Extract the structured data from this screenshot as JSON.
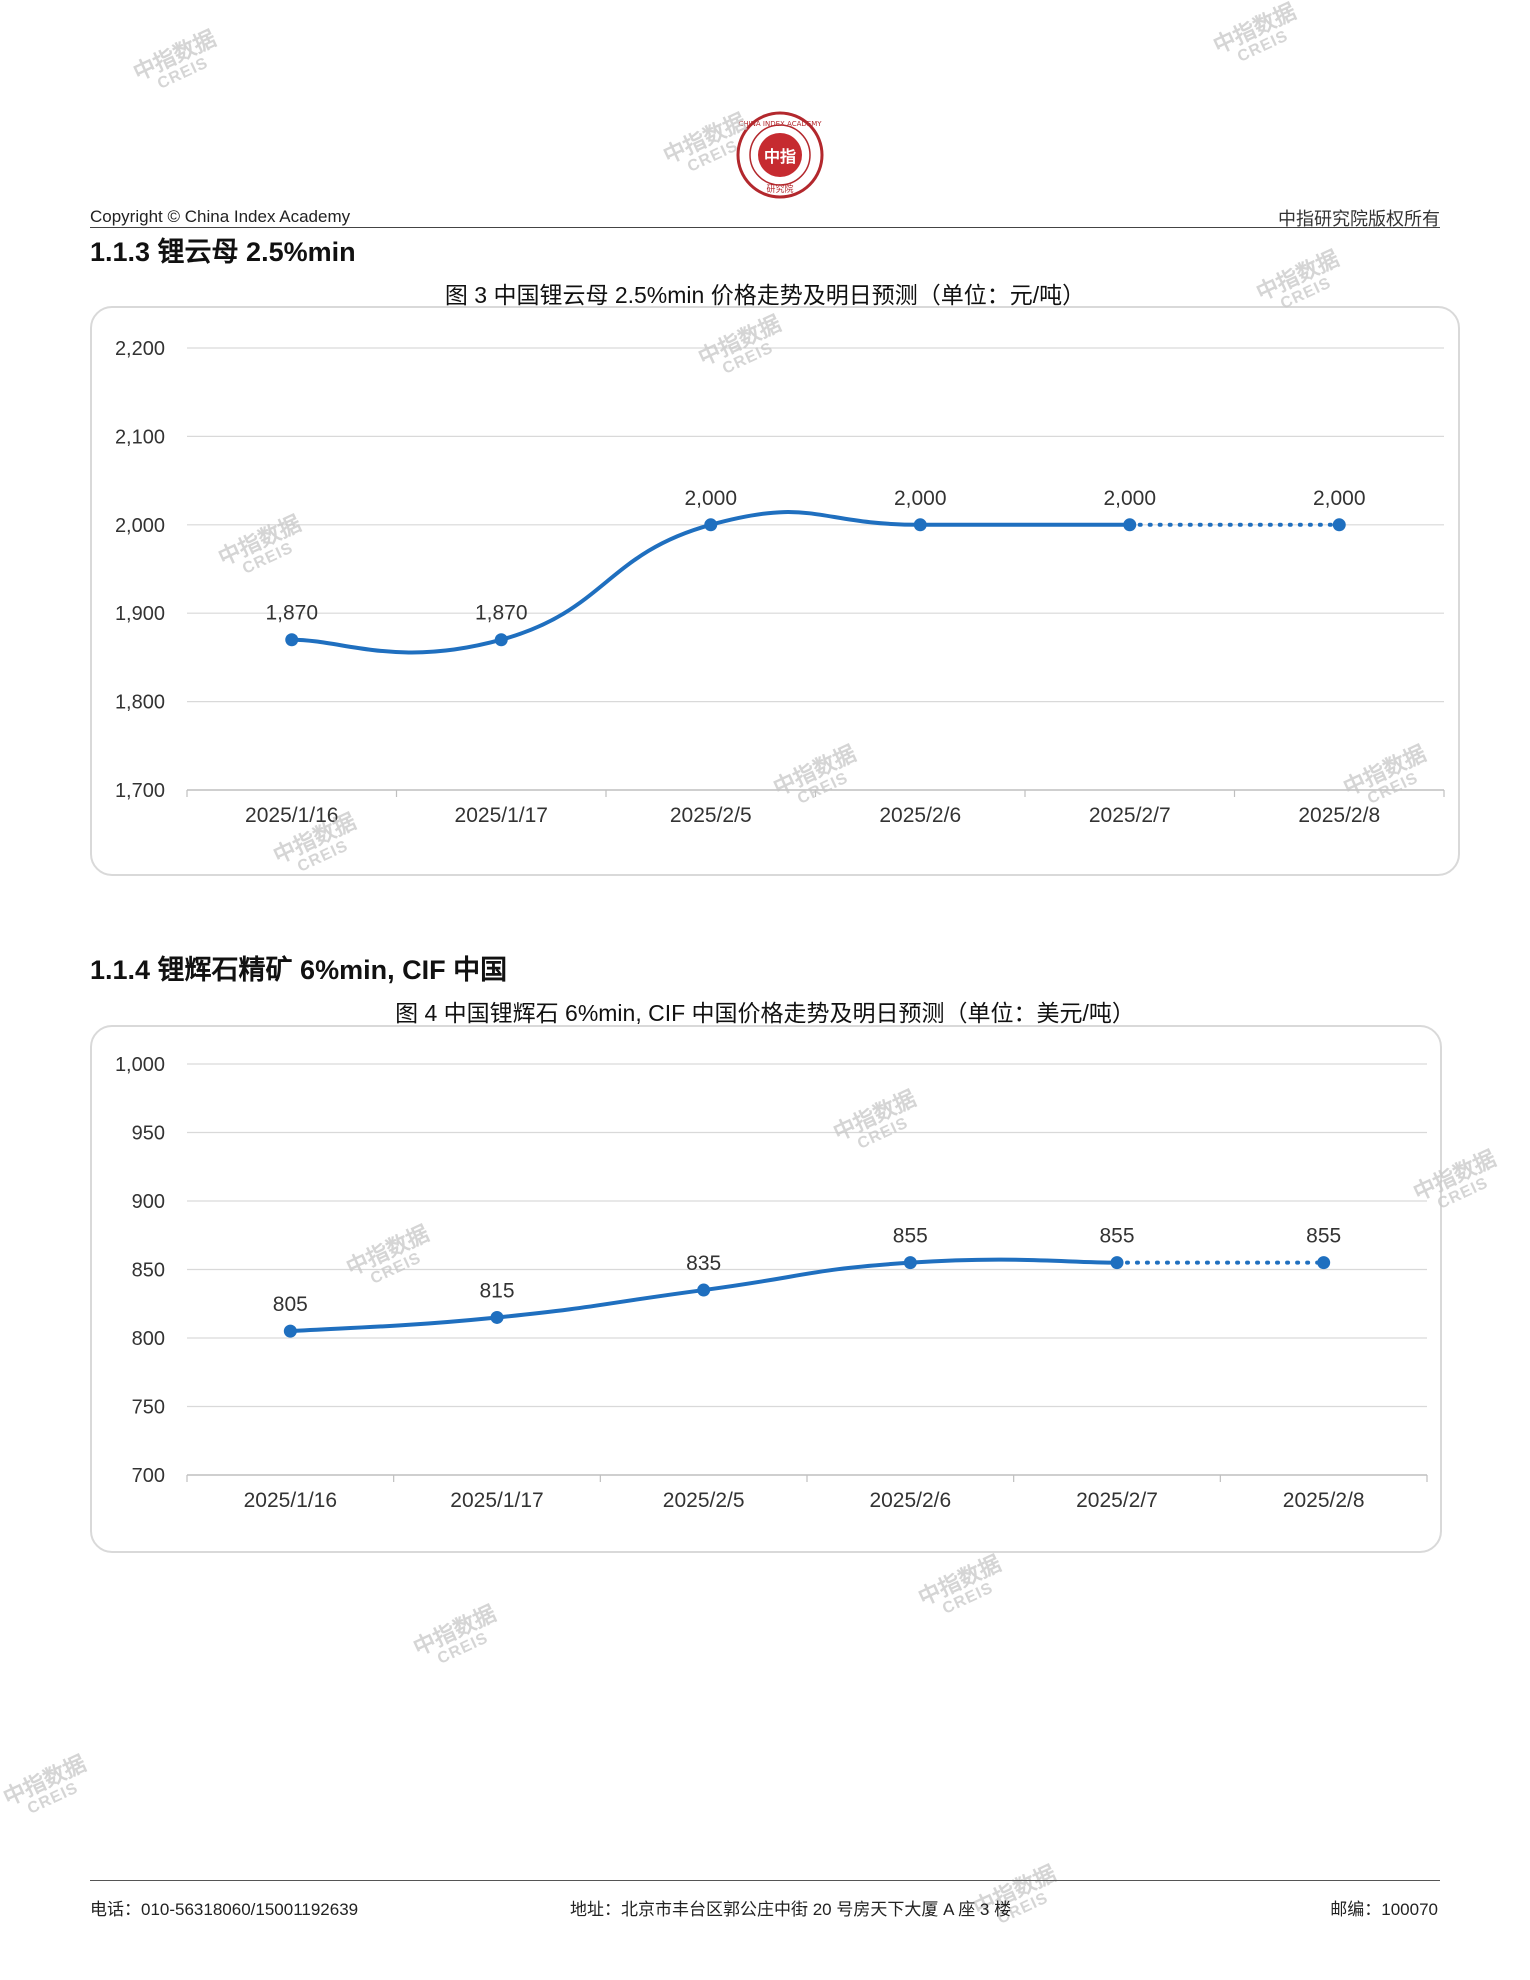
{
  "header": {
    "copyright": "Copyright © China Index Academy",
    "rights": "中指研究院版权所有",
    "logo_ring_text": "CHINA INDEX ACADEMY",
    "logo_center_text": "中指",
    "logo_bottom_text": "研究院"
  },
  "watermark": {
    "cn": "中指数据",
    "en": "CREIS"
  },
  "sections": [
    {
      "heading": "1.1.3 锂云母 2.5%min",
      "figure_title": "图 3 中国锂云母 2.5%min 价格走势及明日预测（单位：元/吨）"
    },
    {
      "heading": "1.1.4 锂辉石精矿 6%min, CIF 中国",
      "figure_title": "图 4 中国锂辉石 6%min, CIF 中国价格走势及明日预测（单位：美元/吨）"
    }
  ],
  "chart_data": [
    {
      "type": "line",
      "title": "图 3 中国锂云母 2.5%min 价格走势及明日预测（单位：元/吨）",
      "categories": [
        "2025/1/16",
        "2025/1/17",
        "2025/2/5",
        "2025/2/6",
        "2025/2/7",
        "2025/2/8"
      ],
      "series": [
        {
          "values": [
            1870,
            1870,
            2000,
            2000,
            2000,
            2000
          ],
          "data_labels": [
            "1,870",
            "1,870",
            "2,000",
            "2,000",
            "2,000",
            "2,000"
          ],
          "forecast_from_index": 4,
          "color": "#1f6fbf"
        }
      ],
      "ylim": [
        1700,
        2200
      ],
      "yticks": [
        1700,
        1800,
        1900,
        2000,
        2100,
        2200
      ],
      "ytick_labels": [
        "1,700",
        "1,800",
        "1,900",
        "2,000",
        "2,100",
        "2,200"
      ],
      "grid": true,
      "smooth": true
    },
    {
      "type": "line",
      "title": "图 4 中国锂辉石 6%min, CIF 中国价格走势及明日预测（单位：美元/吨）",
      "categories": [
        "2025/1/16",
        "2025/1/17",
        "2025/2/5",
        "2025/2/6",
        "2025/2/7",
        "2025/2/8"
      ],
      "series": [
        {
          "values": [
            805,
            815,
            835,
            855,
            855,
            855
          ],
          "data_labels": [
            "805",
            "815",
            "835",
            "855",
            "855",
            "855"
          ],
          "forecast_from_index": 4,
          "color": "#1f6fbf"
        }
      ],
      "ylim": [
        700,
        1000
      ],
      "yticks": [
        700,
        750,
        800,
        850,
        900,
        950,
        1000
      ],
      "ytick_labels": [
        "700",
        "750",
        "800",
        "850",
        "900",
        "950",
        "1,000"
      ],
      "grid": true,
      "smooth": true
    }
  ],
  "footer": {
    "phone": "电话：010-56318060/15001192639",
    "address": "地址：北京市丰台区郭公庄中街 20 号房天下大厦 A 座 3 楼",
    "postcode": "邮编：100070"
  }
}
